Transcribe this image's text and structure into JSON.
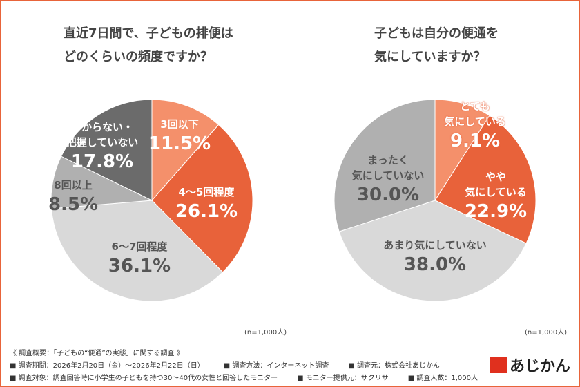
{
  "chart_data": [
    {
      "type": "pie",
      "title": "直近7日間で、子どもの排便は\nどのくらいの頻度ですか？",
      "categories": [
        "3回以下",
        "4〜5回程度",
        "6〜7回程度",
        "8回以上",
        "わからない・\n把握していない"
      ],
      "values": [
        11.5,
        26.1,
        36.1,
        8.5,
        17.8
      ],
      "value_labels": [
        "11.5%",
        "26.1%",
        "36.1%",
        "8.5%",
        "17.8%"
      ],
      "colors": [
        "#f4906b",
        "#e8623a",
        "#d9d9d9",
        "#b0b0b0",
        "#6b6b6b"
      ],
      "note": "(n=1,000人)"
    },
    {
      "type": "pie",
      "title": "子どもは自分の便通を\n気にしていますか？",
      "categories": [
        "とても\n気にしている",
        "やや\n気にしている",
        "あまり気にしていない",
        "まったく\n気にしていない"
      ],
      "values": [
        9.1,
        22.9,
        38.0,
        30.0
      ],
      "value_labels": [
        "9.1%",
        "22.9%",
        "38.0%",
        "30.0%"
      ],
      "colors": [
        "#f4906b",
        "#e8623a",
        "#d9d9d9",
        "#b0b0b0"
      ],
      "note": "(n=1,000人)"
    }
  ],
  "footer": {
    "heading": "《 調査概要：「子どもの“便通”の実態」に関する調査 》",
    "line1": [
      "■ 調査期間：2026年2月20日（金）〜2026年2月22日（日）",
      "■ 調査方法：インターネット調査",
      "■ 調査元：株式会社あじかん"
    ],
    "line2": [
      "■ 調査対象：調査回答時に小学生の子どもを持つ30〜40代の女性と回答したモニター",
      "■ モニター提供元：サクリサ",
      "■ 調査人数：1,000人"
    ]
  },
  "logo": "あじかん"
}
